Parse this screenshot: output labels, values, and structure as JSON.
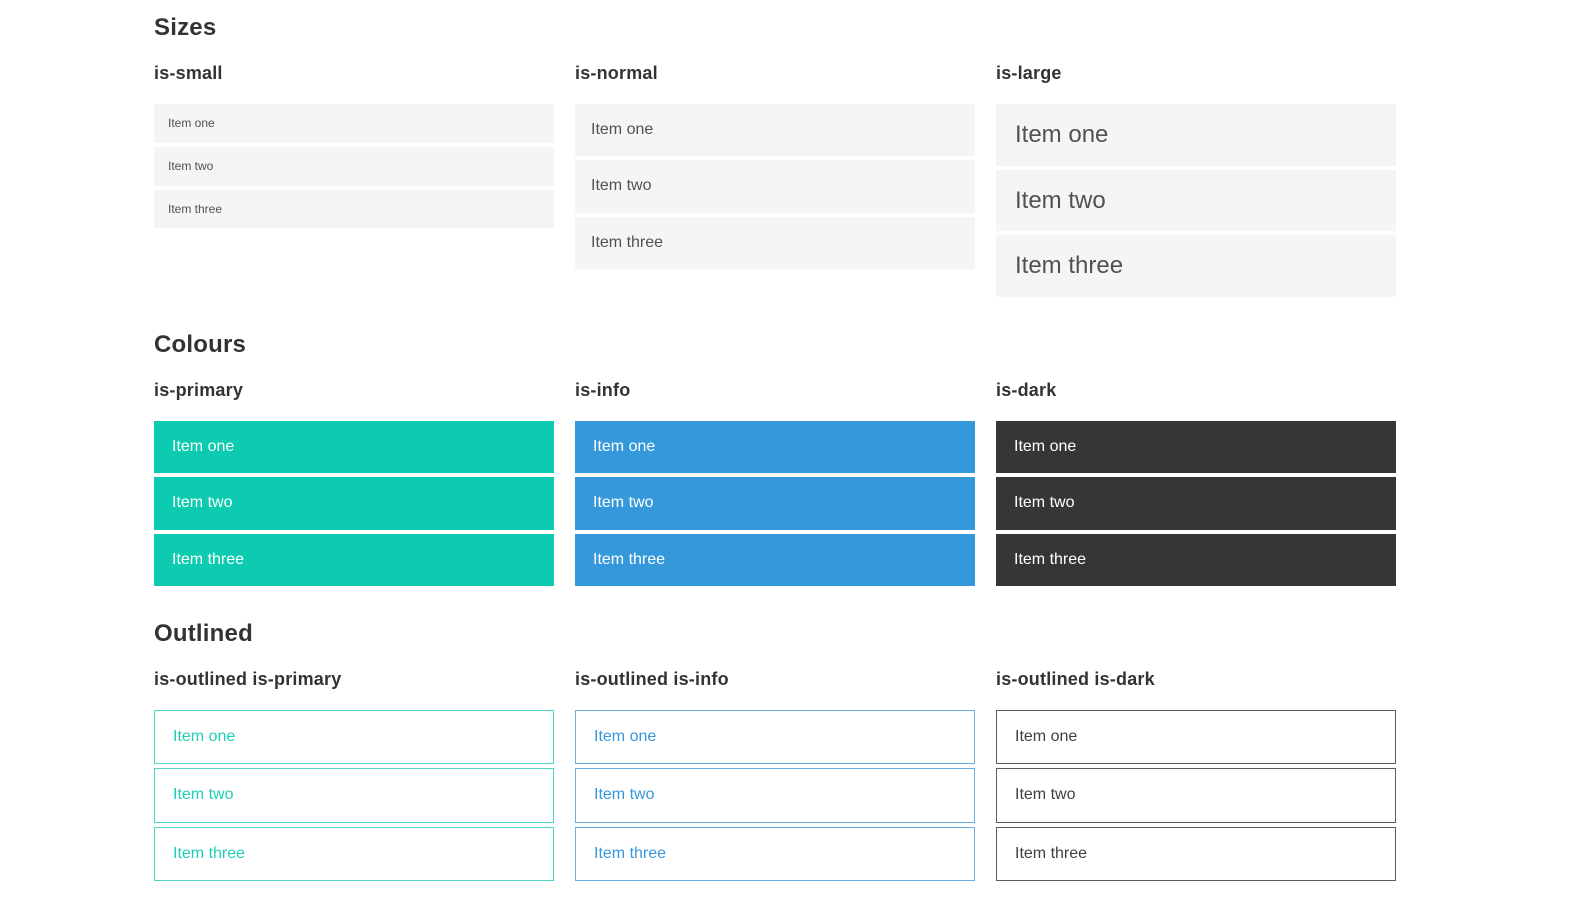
{
  "colors": {
    "primary": "#0dcbb0",
    "info": "#3498db",
    "dark": "#363636",
    "muted_item_bg": "#f5f5f5",
    "muted_item_text": "#515151",
    "heading_text": "#333333",
    "primary_outlined_border": "#4cd8c3",
    "primary_outlined_text": "#20cfb5",
    "info_outlined_border": "#68afe5",
    "info_outlined_text": "#3897dc",
    "dark_outlined_border": "#5e5e5e",
    "dark_outlined_text": "#3f3f3f",
    "page_bg": "#ffffff"
  },
  "sections": [
    {
      "title": "Sizes",
      "groups": [
        {
          "label": "is-small",
          "items": [
            "Item one",
            "Item two",
            "Item three"
          ]
        },
        {
          "label": "is-normal",
          "items": [
            "Item one",
            "Item two",
            "Item three"
          ]
        },
        {
          "label": "is-large",
          "items": [
            "Item one",
            "Item two",
            "Item three"
          ]
        }
      ]
    },
    {
      "title": "Colours",
      "groups": [
        {
          "label": "is-primary",
          "items": [
            "Item one",
            "Item two",
            "Item three"
          ]
        },
        {
          "label": "is-info",
          "items": [
            "Item one",
            "Item two",
            "Item three"
          ]
        },
        {
          "label": "is-dark",
          "items": [
            "Item one",
            "Item two",
            "Item three"
          ]
        }
      ]
    },
    {
      "title": "Outlined",
      "groups": [
        {
          "label": "is-outlined is-primary",
          "items": [
            "Item one",
            "Item two",
            "Item three"
          ]
        },
        {
          "label": "is-outlined is-info",
          "items": [
            "Item one",
            "Item two",
            "Item three"
          ]
        },
        {
          "label": "is-outlined is-dark",
          "items": [
            "Item one",
            "Item two",
            "Item three"
          ]
        }
      ]
    }
  ]
}
